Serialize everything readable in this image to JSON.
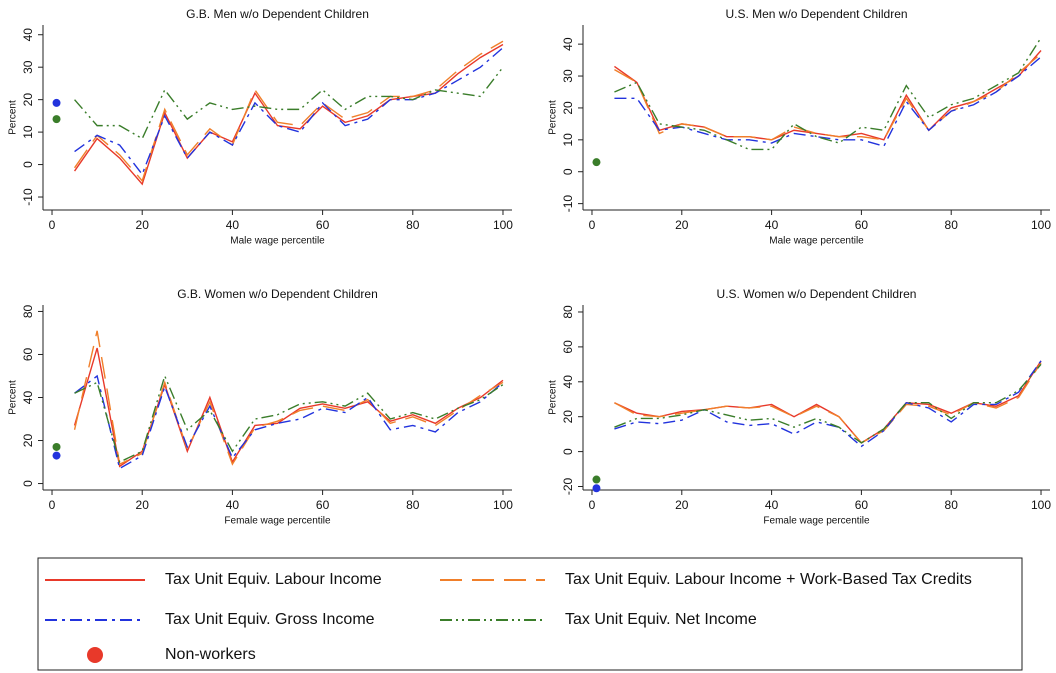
{
  "chart_data": [
    {
      "type": "line",
      "title": "G.B. Men w/o Dependent Children",
      "x_label": "Male wage percentile",
      "y_label": "Percent",
      "x": [
        5,
        10,
        15,
        20,
        25,
        30,
        35,
        40,
        45,
        50,
        55,
        60,
        65,
        70,
        75,
        80,
        85,
        90,
        95,
        100
      ],
      "xlim": [
        -2,
        102
      ],
      "xticks": [
        0,
        20,
        40,
        60,
        80,
        100
      ],
      "ylim": [
        -14,
        43
      ],
      "yticks": [
        -10,
        0,
        10,
        20,
        30,
        40
      ],
      "series": [
        {
          "values": [
            -2,
            8,
            2,
            -6,
            16,
            2,
            10,
            7,
            22,
            12,
            11,
            18,
            13,
            15,
            20,
            21,
            22,
            28,
            33,
            37
          ]
        },
        {
          "values": [
            -1,
            9,
            3,
            -5,
            17,
            3,
            11,
            6,
            23,
            13,
            12,
            19,
            14,
            16,
            21,
            21,
            23,
            29,
            34,
            38
          ]
        },
        {
          "values": [
            4,
            9,
            6,
            -3,
            15,
            2,
            10,
            6,
            19,
            12,
            10,
            19,
            12,
            14,
            20,
            20,
            22,
            26,
            30,
            36
          ]
        },
        {
          "values": [
            20,
            12,
            12,
            8,
            23,
            14,
            19,
            17,
            18,
            17,
            17,
            23,
            17,
            21,
            21,
            20,
            23,
            22,
            21,
            30
          ]
        }
      ],
      "nonworkers": {
        "x": [
          1,
          1
        ],
        "values": [
          19,
          14
        ],
        "colors": [
          "#2233dd",
          "#3a7d2a"
        ]
      }
    },
    {
      "type": "line",
      "title": "U.S. Men w/o Dependent Children",
      "x_label": "Male wage percentile",
      "y_label": "Percent",
      "x": [
        5,
        10,
        15,
        20,
        25,
        30,
        35,
        40,
        45,
        50,
        55,
        60,
        65,
        70,
        75,
        80,
        85,
        90,
        95,
        100
      ],
      "xlim": [
        -2,
        102
      ],
      "xticks": [
        0,
        20,
        40,
        60,
        80,
        100
      ],
      "ylim": [
        -12,
        46
      ],
      "yticks": [
        -10,
        0,
        10,
        20,
        30,
        40
      ],
      "series": [
        {
          "values": [
            33,
            28,
            13,
            15,
            14,
            11,
            11,
            10,
            13,
            12,
            11,
            12,
            10,
            24,
            13,
            20,
            22,
            26,
            30,
            38
          ]
        },
        {
          "values": [
            32,
            28,
            12,
            15,
            14,
            11,
            11,
            10,
            14,
            12,
            11,
            11,
            10,
            23,
            13,
            19,
            22,
            25,
            31,
            37
          ]
        },
        {
          "values": [
            23,
            23,
            13,
            14,
            12,
            10,
            10,
            9,
            12,
            11,
            10,
            10,
            8,
            22,
            13,
            19,
            21,
            25,
            30,
            36
          ]
        },
        {
          "values": [
            25,
            28,
            15,
            14,
            13,
            10,
            7,
            7,
            15,
            11,
            9,
            14,
            13,
            27,
            17,
            21,
            23,
            27,
            31,
            42
          ]
        }
      ],
      "nonworkers": {
        "x": [
          1
        ],
        "values": [
          3
        ],
        "colors": [
          "#3a7d2a"
        ]
      }
    },
    {
      "type": "line",
      "title": "G.B. Women w/o Dependent Children",
      "x_label": "Female wage percentile",
      "y_label": "Percent",
      "x": [
        5,
        10,
        15,
        20,
        25,
        30,
        35,
        40,
        45,
        50,
        55,
        60,
        65,
        70,
        75,
        80,
        85,
        90,
        95,
        100
      ],
      "xlim": [
        -2,
        102
      ],
      "xticks": [
        0,
        20,
        40,
        60,
        80,
        100
      ],
      "ylim": [
        -3,
        83
      ],
      "yticks": [
        0,
        20,
        40,
        60,
        80
      ],
      "series": [
        {
          "values": [
            27,
            63,
            8,
            15,
            46,
            15,
            40,
            10,
            27,
            28,
            35,
            37,
            35,
            38,
            29,
            32,
            28,
            35,
            40,
            48
          ]
        },
        {
          "values": [
            25,
            71,
            9,
            14,
            47,
            16,
            38,
            9,
            26,
            29,
            34,
            36,
            34,
            39,
            28,
            31,
            27,
            34,
            41,
            47
          ]
        },
        {
          "values": [
            42,
            50,
            7,
            13,
            45,
            17,
            36,
            12,
            25,
            28,
            30,
            35,
            33,
            40,
            25,
            27,
            24,
            33,
            38,
            47
          ]
        },
        {
          "values": [
            42,
            47,
            10,
            15,
            50,
            25,
            34,
            15,
            30,
            32,
            37,
            38,
            36,
            42,
            30,
            33,
            30,
            35,
            39,
            46
          ]
        }
      ],
      "nonworkers": {
        "x": [
          1,
          1
        ],
        "values": [
          13,
          17
        ],
        "colors": [
          "#2233dd",
          "#3a7d2a"
        ]
      }
    },
    {
      "type": "line",
      "title": "U.S. Women w/o Dependent Children",
      "x_label": "Female wage percentile",
      "y_label": "Percent",
      "x": [
        5,
        10,
        15,
        20,
        25,
        30,
        35,
        40,
        45,
        50,
        55,
        60,
        65,
        70,
        75,
        80,
        85,
        90,
        95,
        100
      ],
      "xlim": [
        -2,
        102
      ],
      "xticks": [
        0,
        20,
        40,
        60,
        80,
        100
      ],
      "ylim": [
        -22,
        84
      ],
      "yticks": [
        -20,
        0,
        20,
        40,
        60,
        80
      ],
      "series": [
        {
          "values": [
            28,
            22,
            20,
            23,
            24,
            26,
            25,
            27,
            20,
            27,
            20,
            5,
            13,
            28,
            27,
            22,
            28,
            26,
            32,
            52
          ]
        },
        {
          "values": [
            28,
            21,
            20,
            22,
            24,
            26,
            25,
            26,
            20,
            26,
            20,
            5,
            12,
            27,
            26,
            21,
            28,
            25,
            31,
            51
          ]
        },
        {
          "values": [
            13,
            17,
            16,
            18,
            24,
            17,
            15,
            16,
            10,
            17,
            14,
            3,
            12,
            28,
            25,
            17,
            27,
            27,
            34,
            52
          ]
        },
        {
          "values": [
            14,
            19,
            19,
            21,
            24,
            21,
            18,
            19,
            14,
            19,
            14,
            5,
            13,
            28,
            28,
            19,
            28,
            28,
            35,
            50
          ]
        }
      ],
      "nonworkers": {
        "x": [
          1,
          1
        ],
        "values": [
          -21,
          -16
        ],
        "colors": [
          "#2233dd",
          "#3a7d2a"
        ]
      }
    }
  ],
  "legend": {
    "items": [
      {
        "name": "Tax Unit Equiv. Labour Income",
        "color": "#e8392a",
        "dash": "solid"
      },
      {
        "name": "Tax Unit Equiv. Labour Income + Work-Based Tax Credits",
        "color": "#f07f2a",
        "dash": "long"
      },
      {
        "name": "Tax Unit Equiv. Gross Income",
        "color": "#2233dd",
        "dash": "dashdot"
      },
      {
        "name": "Tax Unit Equiv. Net Income",
        "color": "#3a7d2a",
        "dash": "dashdotdot"
      }
    ],
    "marker": {
      "name": "Non-workers",
      "color": "#e8392a"
    }
  }
}
